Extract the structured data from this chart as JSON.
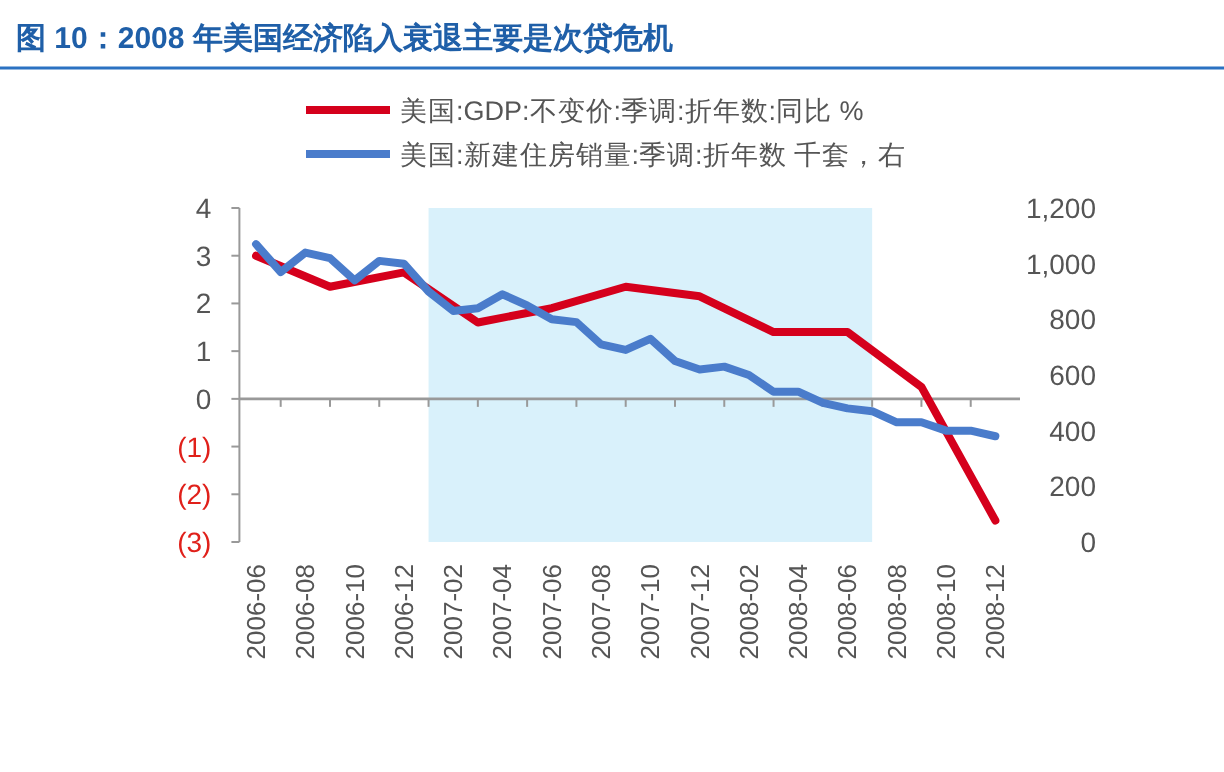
{
  "chart_data": {
    "type": "line",
    "title": "图 10：2008 年美国经济陷入衰退主要是次贷危机",
    "legend": "top",
    "line_style": "solid",
    "marker": "none",
    "xlim": [
      "2006-05",
      "2009-01"
    ],
    "xticks": [
      "2006-06",
      {
        "value": "2006-07",
        "label": null
      },
      "2006-08",
      {
        "value": "2006-09",
        "label": null
      },
      "2006-10",
      {
        "value": "2006-11",
        "label": null
      },
      "2006-12",
      {
        "value": "2007-01",
        "label": null
      },
      "2007-02",
      {
        "value": "2007-03",
        "label": null
      },
      "2007-04",
      {
        "value": "2007-05",
        "label": null
      },
      "2007-06",
      {
        "value": "2007-07",
        "label": null
      },
      "2007-08",
      {
        "value": "2007-09",
        "label": null
      },
      "2007-10",
      {
        "value": "2007-11",
        "label": null
      },
      "2007-12",
      {
        "value": "2008-01",
        "label": null
      },
      "2008-02",
      {
        "value": "2008-03",
        "label": null
      },
      "2008-04",
      {
        "value": "2008-05",
        "label": null
      },
      "2008-06",
      {
        "value": "2008-07",
        "label": null
      },
      "2008-08",
      {
        "value": "2008-09",
        "label": null
      },
      "2008-10",
      {
        "value": "2008-11",
        "label": null
      },
      "2008-12"
    ],
    "ylim": [
      -3,
      4
    ],
    "yticks": [
      {
        "value": -3,
        "label": "(3)"
      },
      {
        "value": -2,
        "label": "(2)"
      },
      {
        "value": -1,
        "label": "(1)"
      },
      0,
      1,
      2,
      3,
      4
    ],
    "y2lim": [
      0,
      1200
    ],
    "y2ticks": [
      0,
      200,
      400,
      600,
      800,
      {
        "value": 1000,
        "label": "1,000"
      },
      {
        "value": 1200,
        "label": "1,200"
      }
    ],
    "bands": [
      {
        "axis": "x",
        "from": "2007-01",
        "to": "2008-07",
        "color": "#d9f1fb"
      }
    ],
    "series": [
      {
        "name": "美国:GDP:不变价:季调:折年数:同比 %",
        "color": "#d5001c",
        "x": [
          "2006-06",
          "2006-09",
          "2006-12",
          "2007-03",
          "2007-06",
          "2007-09",
          "2007-12",
          "2008-03",
          "2008-06",
          "2008-09",
          "2008-12"
        ],
        "values": [
          3.0,
          2.35,
          2.65,
          1.6,
          1.9,
          2.35,
          2.15,
          1.4,
          1.4,
          0.25,
          -2.55
        ]
      },
      {
        "name": "美国:新建住房销量:季调:折年数 千套，右",
        "color": "#4a7ccb",
        "axis": "y2",
        "x": [
          "2006-06",
          "2006-07",
          "2006-08",
          "2006-09",
          "2006-10",
          "2006-11",
          "2006-12",
          "2007-01",
          "2007-02",
          "2007-03",
          "2007-04",
          "2007-05",
          "2007-06",
          "2007-07",
          "2007-08",
          "2007-09",
          "2007-10",
          "2007-11",
          "2007-12",
          "2008-01",
          "2008-02",
          "2008-03",
          "2008-04",
          "2008-05",
          "2008-06",
          "2008-07",
          "2008-08",
          "2008-09",
          "2008-10",
          "2008-11",
          "2008-12"
        ],
        "values": [
          1070,
          970,
          1040,
          1020,
          940,
          1010,
          1000,
          900,
          830,
          840,
          890,
          850,
          800,
          790,
          710,
          690,
          730,
          650,
          620,
          630,
          600,
          540,
          540,
          500,
          480,
          470,
          430,
          430,
          400,
          400,
          380
        ]
      }
    ]
  }
}
